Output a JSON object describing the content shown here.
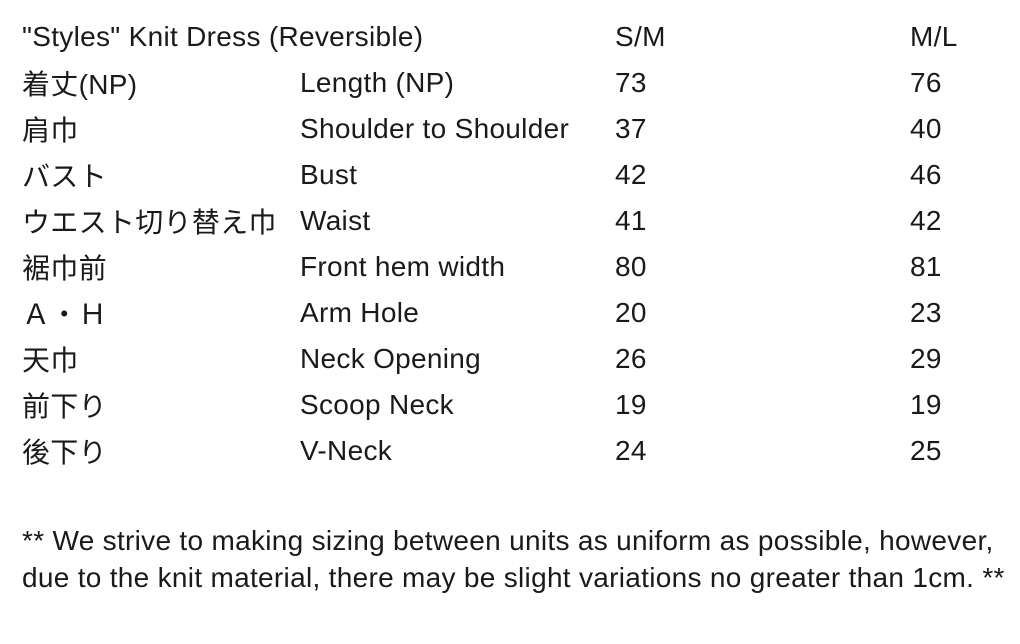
{
  "table": {
    "title": "\"Styles\" Knit Dress (Reversible)",
    "size_columns": [
      "S/M",
      "M/L"
    ],
    "rows": [
      {
        "jp": "着丈(NP)",
        "en": "Length (NP)",
        "sm": "73",
        "ml": "76"
      },
      {
        "jp": "肩巾",
        "en": "Shoulder to Shoulder",
        "sm": "37",
        "ml": "40"
      },
      {
        "jp": "バスト",
        "en": "Bust",
        "sm": "42",
        "ml": "46"
      },
      {
        "jp": "ウエスト切り替え巾",
        "en": "Waist",
        "sm": "41",
        "ml": "42"
      },
      {
        "jp": "裾巾前",
        "en": "Front hem width",
        "sm": "80",
        "ml": "81"
      },
      {
        "jp": "Ａ・Ｈ",
        "en": "Arm Hole",
        "sm": "20",
        "ml": "23"
      },
      {
        "jp": "天巾",
        "en": "Neck Opening",
        "sm": "26",
        "ml": "29"
      },
      {
        "jp": "前下り",
        "en": "Scoop Neck",
        "sm": "19",
        "ml": "19"
      },
      {
        "jp": "後下り",
        "en": "V-Neck",
        "sm": "24",
        "ml": "25"
      }
    ]
  },
  "footnote": "** We strive to making sizing between units as uniform as possible, however, due to the knit material, there may be slight variations no greater than 1cm. **",
  "colors": {
    "text": "#1a1a1a",
    "background": "#ffffff"
  }
}
